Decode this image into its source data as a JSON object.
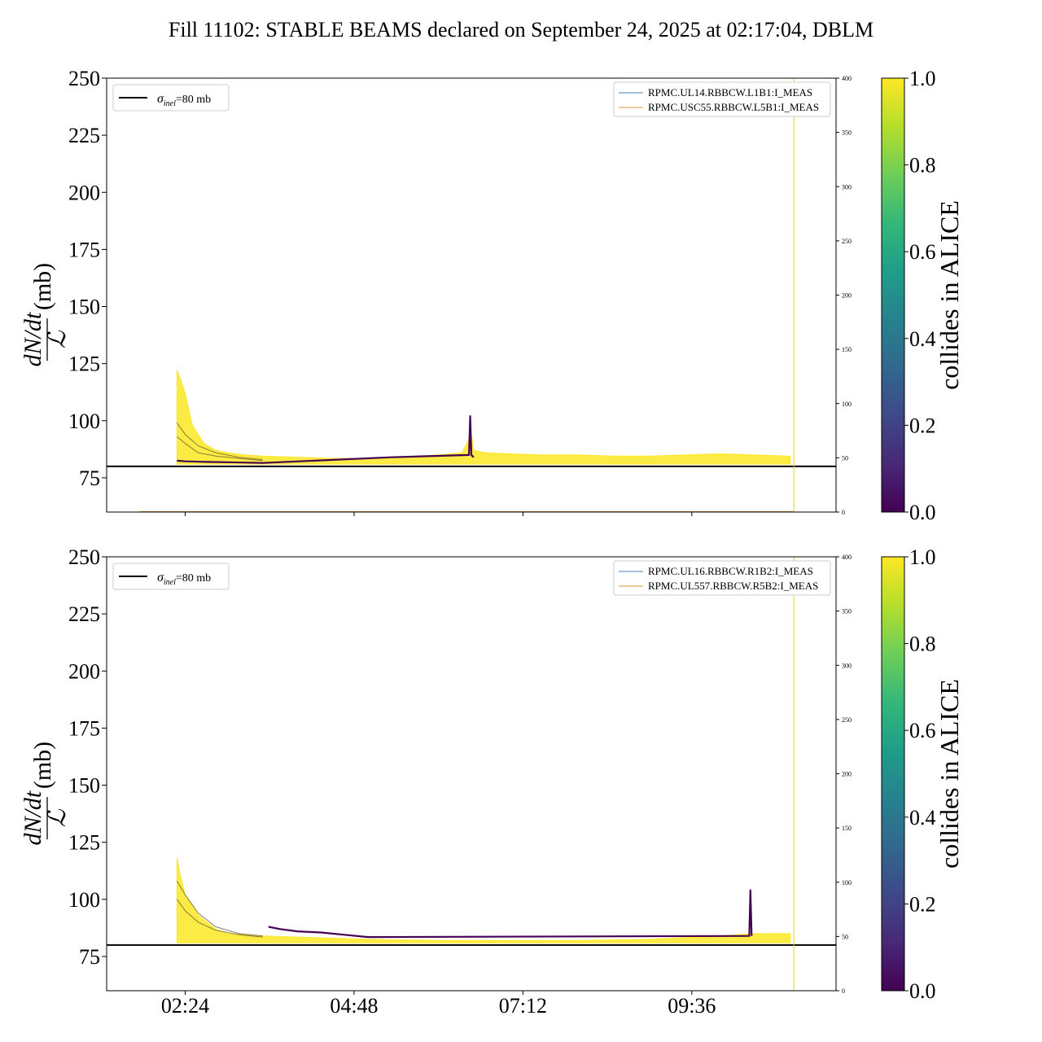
{
  "figure": {
    "title": "Fill 11102: STABLE BEAMS declared on September 24, 2025 at 02:17:04, DBLM"
  },
  "chart_data": [
    {
      "type": "line",
      "panel": "top",
      "ylabel_num": "dN/dt",
      "ylabel_den": "ℒ",
      "ylabel_unit": "(mb)",
      "ylim": [
        60,
        250
      ],
      "yticks": [
        75,
        100,
        125,
        150,
        175,
        200,
        225,
        250
      ],
      "y2lim": [
        0,
        400
      ],
      "y2ticks": [
        0,
        50,
        100,
        150,
        200,
        250,
        300,
        350,
        400
      ],
      "xlim": [
        "01:17",
        "11:39"
      ],
      "xticks": [
        "02:24",
        "04:48",
        "07:12",
        "09:36"
      ],
      "xtick_labels_visible": false,
      "hline": {
        "y": 80,
        "label_symbol": "σ",
        "label_sub": "inel",
        "label_rest": "=80 mb",
        "color": "#000000"
      },
      "vline": {
        "x": "11:03",
        "color": "#e8d21a"
      },
      "legend": [
        {
          "name": "RPMC.UL14.RBBCW.L1B1:I_MEAS",
          "color": "#4c7fb8"
        },
        {
          "name": "RPMC.USC55.RBBCW.L5B1:I_MEAS",
          "color": "#d59a3a"
        }
      ],
      "series": [
        {
          "name": "collides in ALICE = 1",
          "color": "#fde725",
          "x": [
            "02:17",
            "02:20",
            "02:24",
            "02:30",
            "02:40",
            "02:50",
            "03:00",
            "03:15",
            "03:30",
            "04:00",
            "04:30",
            "05:00",
            "05:30",
            "06:00",
            "06:20",
            "06:28",
            "06:30",
            "06:40",
            "07:00",
            "07:30",
            "08:00",
            "08:30",
            "09:00",
            "09:30",
            "10:00",
            "10:30",
            "11:00"
          ],
          "y": [
            122,
            118,
            112,
            98,
            90,
            87,
            86,
            85,
            84.5,
            84,
            83.5,
            83.5,
            84,
            85,
            86,
            94,
            87,
            86,
            85.5,
            85,
            85,
            84.5,
            84.5,
            85,
            85.5,
            85,
            84.5
          ],
          "y_low": [
            81,
            81,
            81,
            81,
            81,
            81,
            81,
            81,
            81,
            81,
            81,
            81,
            81,
            81,
            81,
            81,
            81,
            81,
            81,
            81,
            81,
            81,
            81,
            81,
            81,
            81,
            81
          ]
        },
        {
          "name": "collides in ALICE = 0",
          "color": "#440154",
          "x": [
            "02:17",
            "02:24",
            "02:40",
            "03:00",
            "03:30",
            "05:20",
            "06:26",
            "06:27",
            "06:28",
            "06:30"
          ],
          "y": [
            82.5,
            82.2,
            82,
            81.8,
            81.5,
            84,
            85,
            102,
            85,
            84
          ]
        }
      ],
      "dark_lines": [
        {
          "x": [
            "02:17",
            "02:24",
            "02:35",
            "02:50",
            "03:10",
            "03:30"
          ],
          "y": [
            99,
            94,
            89,
            86,
            84,
            83
          ]
        },
        {
          "x": [
            "02:17",
            "02:24",
            "02:35",
            "02:50",
            "03:10",
            "03:30"
          ],
          "y": [
            93,
            90,
            86,
            84.5,
            83.5,
            82.5
          ]
        }
      ],
      "bottom_trace": {
        "name": "RPMC.USC55.RBBCW.L5B1:I_MEAS",
        "y2": 0
      }
    },
    {
      "type": "line",
      "panel": "bottom",
      "ylabel_num": "dN/dt",
      "ylabel_den": "ℒ",
      "ylabel_unit": "(mb)",
      "ylim": [
        60,
        250
      ],
      "yticks": [
        75,
        100,
        125,
        150,
        175,
        200,
        225,
        250
      ],
      "y2lim": [
        0,
        400
      ],
      "y2ticks": [
        0,
        50,
        100,
        150,
        200,
        250,
        300,
        350,
        400
      ],
      "xlim": [
        "01:17",
        "11:39"
      ],
      "xticks": [
        "02:24",
        "04:48",
        "07:12",
        "09:36"
      ],
      "xtick_labels_visible": true,
      "hline": {
        "y": 80,
        "label_symbol": "σ",
        "label_sub": "inel",
        "label_rest": "=80 mb",
        "color": "#000000"
      },
      "vline": {
        "x": "11:03",
        "color": "#e8d21a"
      },
      "legend": [
        {
          "name": "RPMC.UL16.RBBCW.R1B2:I_MEAS",
          "color": "#4c7fb8"
        },
        {
          "name": "RPMC.UL557.RBBCW.R5B2:I_MEAS",
          "color": "#d59a3a"
        }
      ],
      "series": [
        {
          "name": "collides in ALICE = 1",
          "color": "#fde725",
          "x": [
            "02:17",
            "02:20",
            "02:24",
            "02:35",
            "02:50",
            "03:00",
            "03:30",
            "04:00",
            "04:30",
            "05:00",
            "06:00",
            "07:00",
            "08:00",
            "09:00",
            "10:00",
            "10:30",
            "11:00"
          ],
          "y": [
            118,
            110,
            102,
            93,
            87,
            85,
            84,
            83.5,
            83,
            82.5,
            82,
            82,
            82,
            82.5,
            84,
            85,
            85
          ],
          "y_low": [
            81,
            81,
            81,
            81,
            81,
            81,
            81,
            81,
            81,
            81,
            81,
            81,
            81,
            81,
            81,
            81,
            81
          ]
        },
        {
          "name": "collides in ALICE = 0",
          "color": "#440154",
          "x": [
            "03:35",
            "03:45",
            "04:00",
            "04:20",
            "04:40",
            "05:00",
            "10:25",
            "10:26",
            "10:27"
          ],
          "y": [
            88,
            87,
            86,
            85.5,
            84.5,
            83.5,
            84,
            104,
            84
          ]
        }
      ],
      "dark_lines": [
        {
          "x": [
            "02:17",
            "02:24",
            "02:35",
            "02:50",
            "03:10",
            "03:30"
          ],
          "y": [
            108,
            102,
            94,
            88,
            85,
            84
          ]
        },
        {
          "x": [
            "02:17",
            "02:24",
            "02:35",
            "02:50",
            "03:10",
            "03:30"
          ],
          "y": [
            100,
            95,
            90,
            86.5,
            84.5,
            83.5
          ]
        }
      ],
      "bottom_trace": null
    }
  ],
  "colorbar": {
    "label": "collides in ALICE",
    "ticks": [
      "0.0",
      "0.2",
      "0.4",
      "0.6",
      "0.8",
      "1.0"
    ],
    "colormap": "viridis",
    "stops": [
      "#440154",
      "#482878",
      "#3e4989",
      "#31688e",
      "#26828e",
      "#1f9e89",
      "#35b779",
      "#6ece58",
      "#b5de2b",
      "#fde725"
    ]
  }
}
